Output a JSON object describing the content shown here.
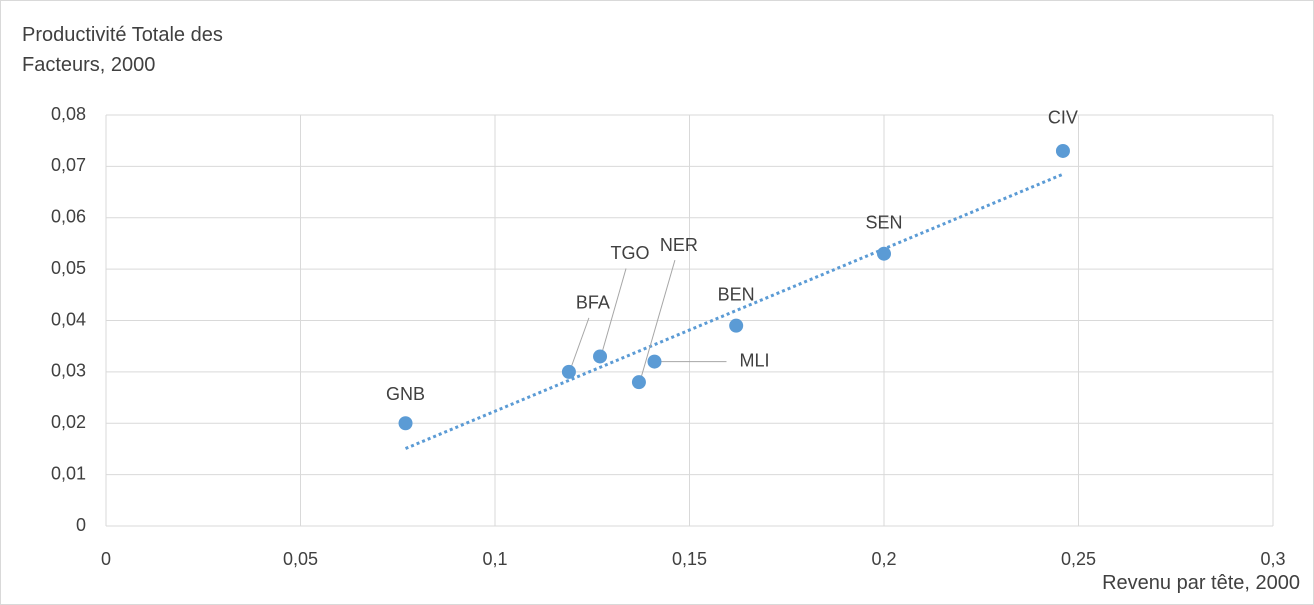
{
  "chart_data": {
    "type": "scatter",
    "xlabel": "Revenu par tête, 2000",
    "ylabel": "Productivité Totale des Facteurs, 2000",
    "labels": [
      "GNB",
      "BFA",
      "TGO",
      "NER",
      "MLI",
      "BEN",
      "SEN",
      "CIV"
    ],
    "x": [
      0.077,
      0.119,
      0.127,
      0.137,
      0.141,
      0.162,
      0.2,
      0.246
    ],
    "values": [
      0.02,
      0.03,
      0.033,
      0.028,
      0.032,
      0.039,
      0.053,
      0.073
    ],
    "color": "#5b9bd5",
    "trendline": true,
    "grid": true,
    "xlim": [
      0,
      0.3
    ],
    "xticks": [
      0,
      {
        "value": 0.05,
        "label": "0,05"
      },
      {
        "value": 0.1,
        "label": "0,1"
      },
      {
        "value": 0.15,
        "label": "0,15"
      },
      {
        "value": 0.2,
        "label": "0,2"
      },
      {
        "value": 0.25,
        "label": "0,25"
      },
      {
        "value": 0.3,
        "label": "0,3"
      }
    ],
    "ylim": [
      0,
      0.08
    ],
    "yticks": [
      0,
      {
        "value": 0.01,
        "label": "0,01"
      },
      {
        "value": 0.02,
        "label": "0,02"
      },
      {
        "value": 0.03,
        "label": "0,03"
      },
      {
        "value": 0.04,
        "label": "0,04"
      },
      {
        "value": 0.05,
        "label": "0,05"
      },
      {
        "value": 0.06,
        "label": "0,06"
      },
      {
        "value": 0.07,
        "label": "0,07"
      },
      {
        "value": 0.08,
        "label": "0,08"
      }
    ]
  }
}
